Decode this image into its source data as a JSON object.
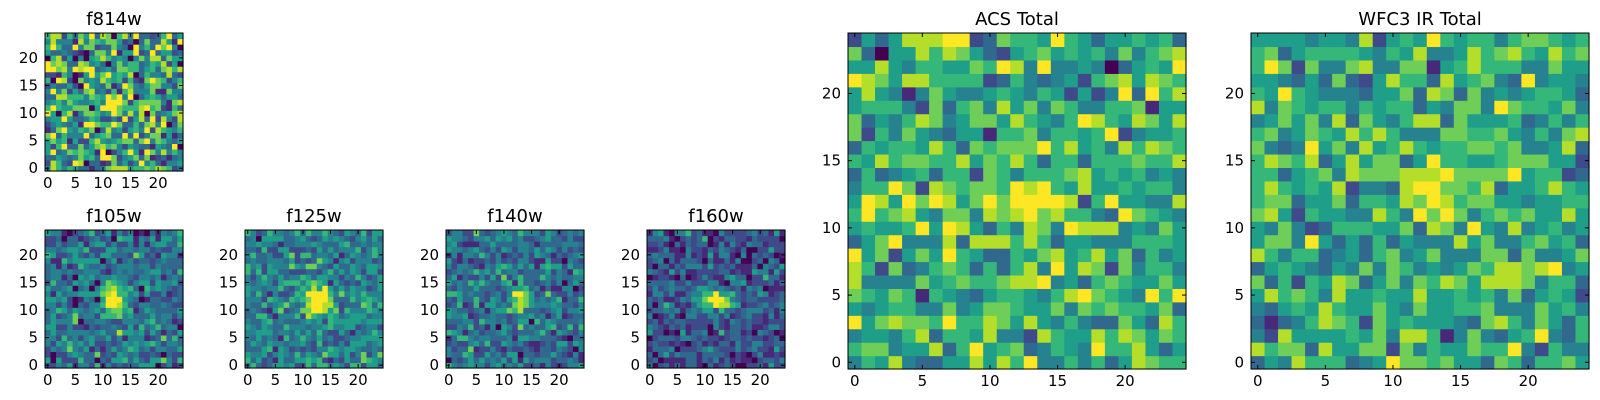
{
  "chart_data": [
    {
      "type": "heatmap",
      "title": "f814w",
      "xlim": [
        -0.5,
        24.5
      ],
      "ylim": [
        -0.5,
        24.5
      ],
      "xticks": [
        "0",
        "5",
        "10",
        "15",
        "20"
      ],
      "yticks": [
        "0",
        "5",
        "10",
        "15",
        "20"
      ],
      "grid_size": 25,
      "noise": 0.26,
      "source": {
        "x": 12,
        "y": 12,
        "sx": 1.6,
        "sy": 0.9,
        "amp": 0.8
      },
      "base": 0.55,
      "seed": 11
    },
    {
      "type": "heatmap",
      "title": "f105w",
      "xlim": [
        -0.5,
        24.5
      ],
      "ylim": [
        -0.5,
        24.5
      ],
      "xticks": [
        "0",
        "5",
        "10",
        "15",
        "20"
      ],
      "yticks": [
        "0",
        "5",
        "10",
        "15",
        "20"
      ],
      "grid_size": 25,
      "noise": 0.14,
      "source": {
        "x": 12,
        "y": 12,
        "sx": 1.3,
        "sy": 2.0,
        "amp": 0.75
      },
      "base": 0.38,
      "seed": 23
    },
    {
      "type": "heatmap",
      "title": "f125w",
      "xlim": [
        -0.5,
        24.5
      ],
      "ylim": [
        -0.5,
        24.5
      ],
      "xticks": [
        "0",
        "5",
        "10",
        "15",
        "20"
      ],
      "yticks": [
        "0",
        "5",
        "10",
        "15",
        "20"
      ],
      "grid_size": 25,
      "noise": 0.13,
      "source": {
        "x": 13,
        "y": 12,
        "sx": 1.6,
        "sy": 1.8,
        "amp": 0.7
      },
      "base": 0.45,
      "seed": 37
    },
    {
      "type": "heatmap",
      "title": "f140w",
      "xlim": [
        -0.5,
        24.5
      ],
      "ylim": [
        -0.5,
        24.5
      ],
      "xticks": [
        "0",
        "5",
        "10",
        "15",
        "20"
      ],
      "yticks": [
        "0",
        "5",
        "10",
        "15",
        "20"
      ],
      "grid_size": 25,
      "noise": 0.14,
      "source": {
        "x": 13,
        "y": 12,
        "sx": 1.0,
        "sy": 1.8,
        "amp": 0.75
      },
      "base": 0.38,
      "seed": 41
    },
    {
      "type": "heatmap",
      "title": "f160w",
      "xlim": [
        -0.5,
        24.5
      ],
      "ylim": [
        -0.5,
        24.5
      ],
      "xticks": [
        "0",
        "5",
        "10",
        "15",
        "20"
      ],
      "yticks": [
        "0",
        "5",
        "10",
        "15",
        "20"
      ],
      "grid_size": 25,
      "noise": 0.14,
      "source": {
        "x": 12,
        "y": 12,
        "sx": 2.0,
        "sy": 1.3,
        "amp": 0.8
      },
      "base": 0.28,
      "seed": 53
    },
    {
      "type": "heatmap",
      "title": "ACS Total",
      "xlim": [
        -0.5,
        24.5
      ],
      "ylim": [
        -0.5,
        24.5
      ],
      "xticks": [
        "0",
        "5",
        "10",
        "15",
        "20"
      ],
      "yticks": [
        "0",
        "5",
        "10",
        "15",
        "20"
      ],
      "grid_size": 25,
      "noise": 0.17,
      "source": {
        "x": 13,
        "y": 12,
        "sx": 1.8,
        "sy": 1.0,
        "amp": 0.5
      },
      "base": 0.6,
      "seed": 67
    },
    {
      "type": "heatmap",
      "title": "WFC3 IR Total",
      "xlim": [
        -0.5,
        24.5
      ],
      "ylim": [
        -0.5,
        24.5
      ],
      "xticks": [
        "0",
        "5",
        "10",
        "15",
        "20"
      ],
      "yticks": [
        "0",
        "5",
        "10",
        "15",
        "20"
      ],
      "grid_size": 25,
      "noise": 0.16,
      "source": {
        "x": 13,
        "y": 13,
        "sx": 1.5,
        "sy": 1.6,
        "amp": 0.5
      },
      "base": 0.6,
      "seed": 79
    }
  ],
  "colormap": [
    "#440154",
    "#482878",
    "#3e4a89",
    "#31688e",
    "#26828e",
    "#1f9e89",
    "#35b779",
    "#6ece58",
    "#b5de2b",
    "#fde725"
  ]
}
